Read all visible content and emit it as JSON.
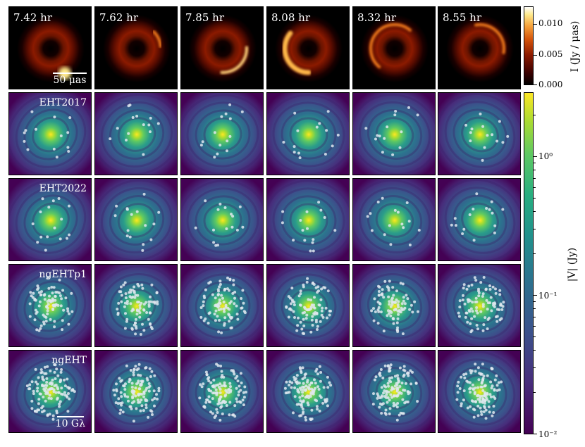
{
  "times": [
    "7.42 hr",
    "7.62 hr",
    "7.85 hr",
    "8.08 hr",
    "8.32 hr",
    "8.55 hr"
  ],
  "arrays": [
    "EHT2017",
    "EHT2022",
    "ngEHTp1",
    "ngEHT"
  ],
  "image_scale_bar": "50 μas",
  "uv_scale_bar": "10 Gλ",
  "intensity_colorbar": {
    "label": "I (Jy / μas)",
    "ticks": [
      "0.010",
      "0.005",
      "0.000"
    ],
    "colormap": "afmhot"
  },
  "visibility_colorbar": {
    "label": "|V| (Jy)",
    "ticks": [
      "10⁰",
      "10⁻¹",
      "10⁻²"
    ],
    "colormap": "viridis",
    "scale": "log"
  },
  "colors": {
    "ring_dark": "#000000",
    "ring_mid": "#8b1a00",
    "ring_bright": "#ffe98a",
    "vis_low": "#440154",
    "vis_mid": "#21918c",
    "vis_high": "#fde725",
    "uv_point": "#dfe8ef"
  }
}
